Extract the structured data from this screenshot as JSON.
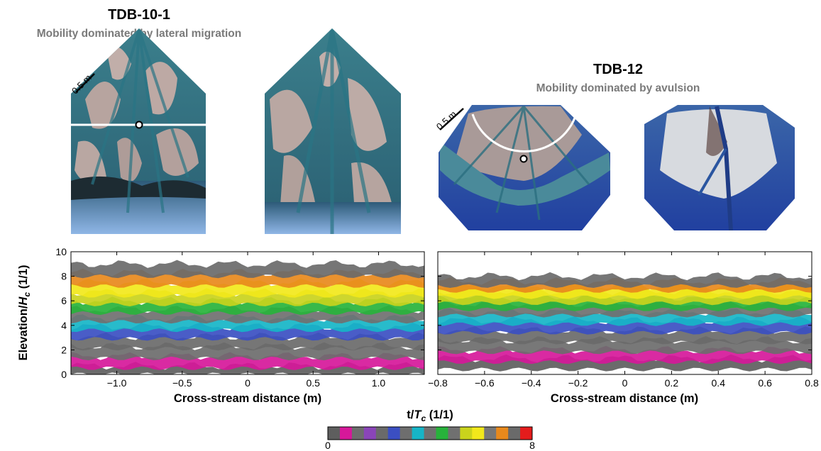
{
  "panels": [
    {
      "id": "tdb-10-1",
      "title": "TDB-10-1",
      "subtitle": "Mobility dominated by lateral migration",
      "scale_label": "0.5 m",
      "section_line": "straight",
      "photo_colors": {
        "water": "#2f6f7e",
        "bar": "#b9a7a1",
        "basin": "#5f8fc4"
      }
    },
    {
      "id": "tdb-12",
      "title": "TDB-12",
      "subtitle": "Mobility dominated by avulsion",
      "scale_label": "0.5 m",
      "section_line": "arc",
      "photo_colors": {
        "water": "#2f6f7e",
        "bar": "#b9a7a1",
        "basin": "#2a4f9e"
      }
    }
  ],
  "chart_data": [
    {
      "type": "area",
      "title": "TDB-10-1",
      "xlabel": "Cross-stream distance (m)",
      "ylabel_main": "Elevation/",
      "ylabel_var": "H",
      "ylabel_sub": "c",
      "ylabel_unit": " (1/1)",
      "xlim": [
        -1.35,
        1.35
      ],
      "ylim": [
        0,
        10
      ],
      "xticks": [
        -1.0,
        -0.5,
        0,
        0.5,
        1.0
      ],
      "xtick_labels": [
        "−1.0",
        "−0.5",
        "0",
        "0.5",
        "1.0"
      ],
      "yticks": [
        0,
        2,
        4,
        6,
        8,
        10
      ],
      "ytick_labels": [
        "0",
        "2",
        "4",
        "6",
        "8",
        "10"
      ],
      "layers": [
        {
          "t": 0.0,
          "top": 0.7,
          "bottom": 0.0
        },
        {
          "t": 0.6,
          "top": 1.5,
          "bottom": 0.5
        },
        {
          "t": 1.2,
          "top": 2.3,
          "bottom": 1.3
        },
        {
          "t": 1.8,
          "top": 3.1,
          "bottom": 2.1
        },
        {
          "t": 2.5,
          "top": 3.9,
          "bottom": 2.9
        },
        {
          "t": 3.3,
          "top": 4.6,
          "bottom": 3.6
        },
        {
          "t": 4.0,
          "top": 5.3,
          "bottom": 4.3
        },
        {
          "t": 4.6,
          "top": 6.0,
          "bottom": 5.0
        },
        {
          "t": 5.3,
          "top": 6.7,
          "bottom": 5.7
        },
        {
          "t": 6.0,
          "top": 7.5,
          "bottom": 6.4
        },
        {
          "t": 6.8,
          "top": 8.3,
          "bottom": 7.2
        },
        {
          "t": 7.6,
          "top": 9.0,
          "bottom": 8.0
        }
      ]
    },
    {
      "type": "area",
      "title": "TDB-12",
      "xlabel": "Cross-stream distance (m)",
      "xlim": [
        -0.8,
        0.8
      ],
      "ylim": [
        0,
        10
      ],
      "xticks": [
        -0.8,
        -0.6,
        -0.4,
        -0.2,
        0,
        0.2,
        0.4,
        0.6,
        0.8
      ],
      "xtick_labels": [
        "−0.8",
        "−0.6",
        "−0.4",
        "−0.2",
        "0",
        "0.2",
        "0.4",
        "0.6",
        "0.8"
      ],
      "yticks": [
        0,
        2,
        4,
        6,
        8,
        10
      ],
      "layers": [
        {
          "t": 0.0,
          "top": 1.3,
          "bottom": 0.4
        },
        {
          "t": 0.6,
          "top": 2.0,
          "bottom": 1.0
        },
        {
          "t": 1.2,
          "top": 2.8,
          "bottom": 1.8
        },
        {
          "t": 1.8,
          "top": 3.6,
          "bottom": 2.6
        },
        {
          "t": 2.5,
          "top": 4.4,
          "bottom": 3.4
        },
        {
          "t": 3.3,
          "top": 5.1,
          "bottom": 4.1
        },
        {
          "t": 4.0,
          "top": 5.8,
          "bottom": 4.8
        },
        {
          "t": 4.6,
          "top": 6.3,
          "bottom": 5.3
        },
        {
          "t": 5.3,
          "top": 6.8,
          "bottom": 5.8
        },
        {
          "t": 6.0,
          "top": 7.2,
          "bottom": 6.3
        },
        {
          "t": 6.8,
          "top": 7.6,
          "bottom": 6.8
        },
        {
          "t": 7.6,
          "top": 8.0,
          "bottom": 7.2
        }
      ]
    }
  ],
  "colorbar": {
    "label_main": "t/",
    "label_var": "T",
    "label_sub": "c",
    "label_unit": " (1/1)",
    "min_label": "0",
    "max_label": "8",
    "colors": [
      "#5e5e5e",
      "#d6189a",
      "#6d6d6d",
      "#8a45b8",
      "#6a6a6a",
      "#3b4fc2",
      "#6e6e6e",
      "#16b5c7",
      "#707070",
      "#27b33b",
      "#707070",
      "#c9d31c",
      "#f2e81b",
      "#777777",
      "#e8891c",
      "#6a6a6a",
      "#e41c1c"
    ]
  }
}
